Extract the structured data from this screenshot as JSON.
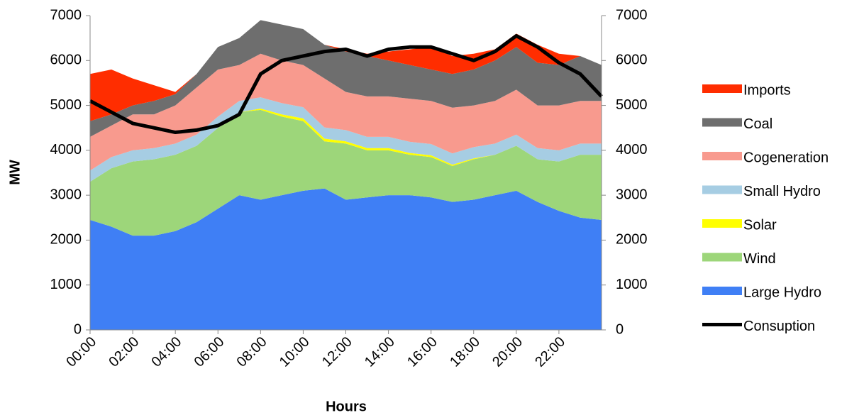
{
  "chart_data": {
    "type": "area",
    "x_label": "Hours",
    "y_label": "MW",
    "categories": [
      "00:00",
      null,
      "02:00",
      null,
      "04:00",
      null,
      "06:00",
      null,
      "08:00",
      null,
      "10:00",
      null,
      "12:00",
      null,
      "14:00",
      null,
      "16:00",
      null,
      "18:00",
      null,
      "20:00",
      null,
      "22:00",
      null,
      null
    ],
    "series": [
      {
        "name": "Large Hydro",
        "color": "#3f7ff5",
        "values": [
          2450,
          2300,
          2100,
          2100,
          2200,
          2400,
          2700,
          3000,
          2900,
          3000,
          3100,
          3150,
          2900,
          2950,
          3000,
          3000,
          2950,
          2850,
          2900,
          3000,
          3100,
          2850,
          2650,
          2500,
          2450
        ]
      },
      {
        "name": "Wind",
        "color": "#9dd67a",
        "values": [
          850,
          1300,
          1650,
          1700,
          1700,
          1700,
          1800,
          1850,
          2000,
          1750,
          1550,
          1050,
          1250,
          1050,
          1000,
          900,
          900,
          800,
          900,
          900,
          1000,
          950,
          1100,
          1400,
          1450
        ]
      },
      {
        "name": "Solar",
        "color": "#ffff00",
        "values": [
          0,
          0,
          0,
          0,
          0,
          0,
          0,
          0,
          30,
          50,
          60,
          60,
          50,
          50,
          50,
          40,
          40,
          30,
          20,
          0,
          0,
          0,
          0,
          0,
          0
        ]
      },
      {
        "name": "Small Hydro",
        "color": "#a6cde3",
        "values": [
          250,
          250,
          250,
          250,
          250,
          250,
          250,
          250,
          250,
          250,
          250,
          250,
          250,
          250,
          250,
          250,
          250,
          250,
          250,
          250,
          250,
          250,
          250,
          250,
          250
        ]
      },
      {
        "name": "Cogeneration",
        "color": "#f89a8e",
        "values": [
          750,
          700,
          800,
          750,
          850,
          1050,
          1050,
          800,
          970,
          950,
          940,
          1090,
          850,
          900,
          900,
          960,
          960,
          1020,
          930,
          950,
          1000,
          950,
          1000,
          950,
          950
        ]
      },
      {
        "name": "Coal",
        "color": "#6e6e6e",
        "values": [
          350,
          250,
          200,
          300,
          250,
          300,
          500,
          600,
          750,
          800,
          800,
          750,
          900,
          900,
          800,
          750,
          700,
          750,
          800,
          900,
          950,
          950,
          900,
          1000,
          800
        ]
      },
      {
        "name": "Imports",
        "color": "#ff2d00",
        "values": [
          1050,
          1000,
          600,
          350,
          50,
          0,
          0,
          0,
          0,
          0,
          0,
          0,
          50,
          50,
          200,
          350,
          500,
          400,
          350,
          250,
          300,
          400,
          250,
          0,
          0
        ]
      },
      {
        "name": "Consuption",
        "color": "#000000",
        "type": "line",
        "values": [
          5100,
          4850,
          4600,
          4500,
          4400,
          4450,
          4550,
          4800,
          5700,
          6000,
          6100,
          6200,
          6250,
          6100,
          6250,
          6300,
          6300,
          6150,
          6000,
          6200,
          6550,
          6300,
          5950,
          5700,
          5200
        ]
      }
    ],
    "ylim": [
      0,
      7000
    ],
    "yticks": [
      0,
      1000,
      2000,
      3000,
      4000,
      5000,
      6000,
      7000
    ],
    "y2lim": [
      0,
      7000
    ],
    "y2ticks": [
      0,
      1000,
      2000,
      3000,
      4000,
      5000,
      6000,
      7000
    ],
    "stacked": true,
    "legend": "right"
  }
}
